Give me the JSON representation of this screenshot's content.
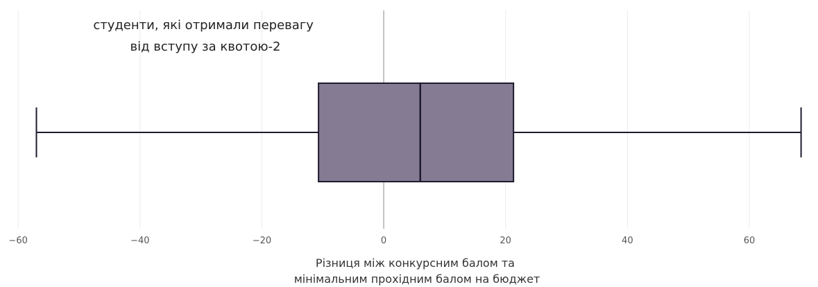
{
  "chart_data": {
    "type": "box",
    "orientation": "horizontal",
    "annotation": [
      "студенти, які отримали перевагу",
      "від вступу за квотою-2"
    ],
    "xlabel": [
      "Різниця між конкурсним балом та",
      "мінімальним прохідним балом на бюджет"
    ],
    "xlim": [
      -60.7,
      69
    ],
    "xticks": [
      -60,
      -40,
      -20,
      0,
      20,
      40,
      60
    ],
    "xtick_labels": [
      "−60",
      "−40",
      "−20",
      "0",
      "20",
      "40",
      "60"
    ],
    "grid": true,
    "zero_line": true,
    "box": {
      "min": -57,
      "q1": -10.7,
      "median": 6,
      "q3": 21.3,
      "max": 68.5
    },
    "colors": {
      "box_fill": "#857c93",
      "box_stroke": "#1f1a2e",
      "grid": "#ebebeb",
      "zero_line": "#888888"
    }
  }
}
